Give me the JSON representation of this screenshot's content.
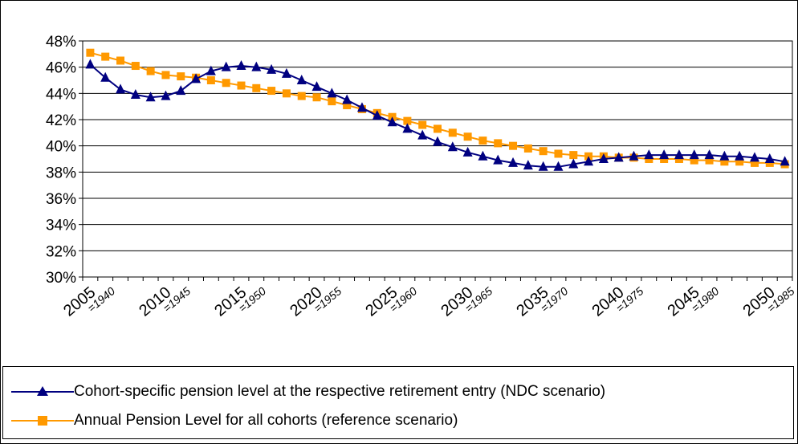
{
  "chart_data": {
    "type": "line",
    "ylim": [
      0.3,
      0.48
    ],
    "yticks": [
      "30%",
      "32%",
      "34%",
      "36%",
      "38%",
      "40%",
      "42%",
      "44%",
      "46%",
      "48%"
    ],
    "x": [
      2005,
      2006,
      2007,
      2008,
      2009,
      2010,
      2011,
      2012,
      2013,
      2014,
      2015,
      2016,
      2017,
      2018,
      2019,
      2020,
      2021,
      2022,
      2023,
      2024,
      2025,
      2026,
      2027,
      2028,
      2029,
      2030,
      2031,
      2032,
      2033,
      2034,
      2035,
      2036,
      2037,
      2038,
      2039,
      2040,
      2041,
      2042,
      2043,
      2044,
      2045,
      2046,
      2047,
      2048,
      2049,
      2050,
      2051
    ],
    "xtick_labels": [
      {
        "year": "2005",
        "cohort": "=1940"
      },
      {
        "year": "2010",
        "cohort": "=1945"
      },
      {
        "year": "2015",
        "cohort": "=1950"
      },
      {
        "year": "2020",
        "cohort": "=1955"
      },
      {
        "year": "2025",
        "cohort": "=1960"
      },
      {
        "year": "2030",
        "cohort": "=1965"
      },
      {
        "year": "2035",
        "cohort": "=1970"
      },
      {
        "year": "2040",
        "cohort": "=1975"
      },
      {
        "year": "2045",
        "cohort": "=1980"
      },
      {
        "year": "2050",
        "cohort": "=1985"
      }
    ],
    "series": [
      {
        "name": "Cohort-specific pension level at the respective retirement entry (NDC scenario)",
        "color": "#000080",
        "marker": "triangle",
        "values": [
          0.462,
          0.452,
          0.443,
          0.439,
          0.437,
          0.438,
          0.442,
          0.451,
          0.457,
          0.46,
          0.461,
          0.46,
          0.458,
          0.455,
          0.45,
          0.445,
          0.44,
          0.435,
          0.429,
          0.423,
          0.418,
          0.413,
          0.408,
          0.403,
          0.399,
          0.395,
          0.392,
          0.389,
          0.387,
          0.385,
          0.384,
          0.384,
          0.386,
          0.388,
          0.39,
          0.391,
          0.392,
          0.393,
          0.393,
          0.393,
          0.393,
          0.393,
          0.392,
          0.392,
          0.391,
          0.39,
          0.388
        ]
      },
      {
        "name": "Annual Pension Level for all cohorts (reference scenario)",
        "color": "#FF9900",
        "marker": "square",
        "values": [
          0.471,
          0.468,
          0.465,
          0.461,
          0.457,
          0.454,
          0.453,
          0.452,
          0.45,
          0.448,
          0.446,
          0.444,
          0.442,
          0.44,
          0.438,
          0.437,
          0.434,
          0.431,
          0.428,
          0.425,
          0.422,
          0.419,
          0.416,
          0.413,
          0.41,
          0.407,
          0.404,
          0.402,
          0.4,
          0.398,
          0.396,
          0.394,
          0.393,
          0.392,
          0.392,
          0.391,
          0.391,
          0.39,
          0.39,
          0.39,
          0.389,
          0.389,
          0.388,
          0.388,
          0.387,
          0.387,
          0.386
        ]
      }
    ],
    "grid": true,
    "legend_position": "bottom"
  }
}
